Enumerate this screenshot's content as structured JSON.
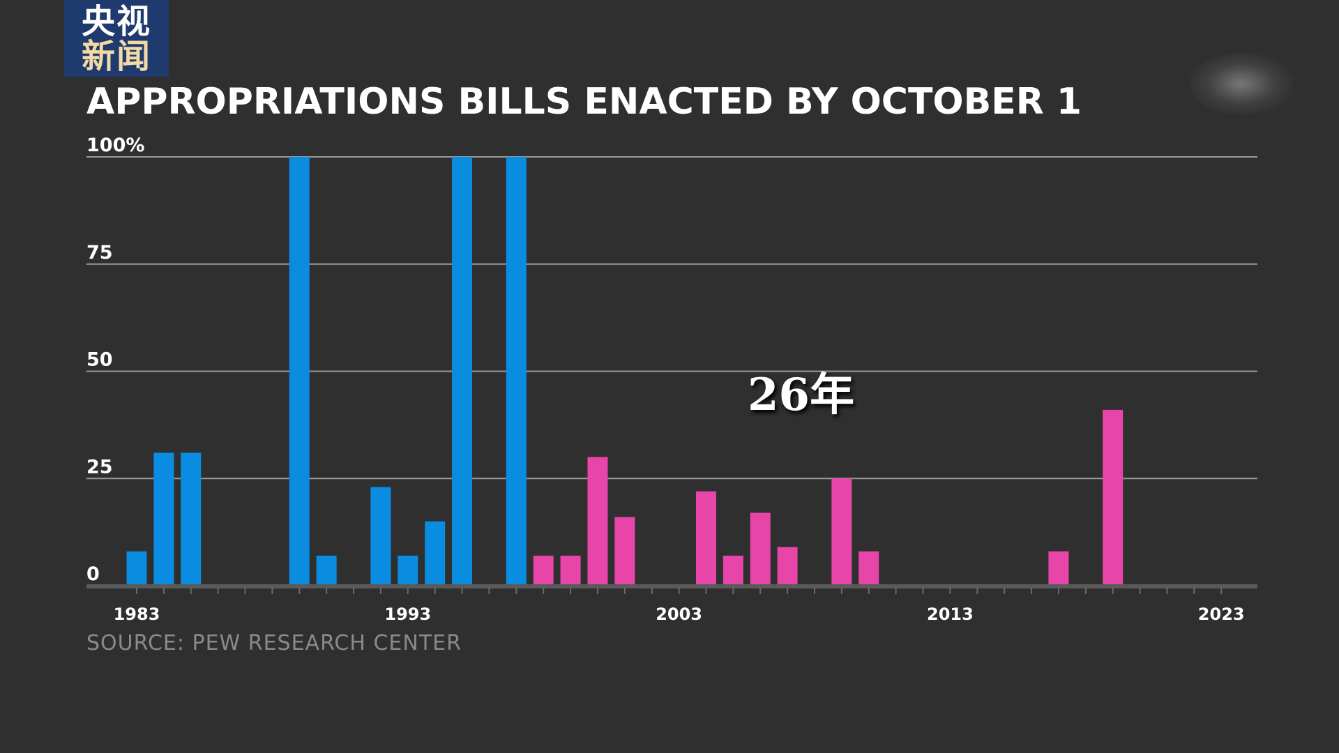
{
  "logo": {
    "line1": "央视",
    "line2": "新闻"
  },
  "annotation": "26年",
  "chart_data": {
    "type": "bar",
    "title": "APPROPRIATIONS BILLS ENACTED BY OCTOBER 1",
    "source": "SOURCE:  PEW RESEARCH CENTER",
    "xlabel": "",
    "ylabel": "",
    "ylim": [
      0,
      100
    ],
    "yticks": [
      "0",
      "25",
      "50",
      "75",
      "100%"
    ],
    "ytick_values": [
      0,
      25,
      50,
      75,
      100
    ],
    "xticks": [
      "1983",
      "1993",
      "2003",
      "2013",
      "2023"
    ],
    "grid": true,
    "colors": {
      "blue": "#0a8de0",
      "pink": "#e845a8"
    },
    "x": [
      1983,
      1984,
      1985,
      1986,
      1987,
      1988,
      1989,
      1990,
      1991,
      1992,
      1993,
      1994,
      1995,
      1996,
      1997,
      1998,
      1999,
      2000,
      2001,
      2002,
      2003,
      2004,
      2005,
      2006,
      2007,
      2008,
      2009,
      2010,
      2011,
      2012,
      2013,
      2014,
      2015,
      2016,
      2017,
      2018,
      2019,
      2020,
      2021,
      2022,
      2023
    ],
    "values": [
      8,
      31,
      31,
      0,
      0,
      0,
      100,
      7,
      0,
      23,
      7,
      15,
      100,
      0,
      100,
      7,
      7,
      30,
      16,
      0,
      0,
      22,
      7,
      17,
      9,
      0,
      25,
      8,
      0,
      0,
      0,
      0,
      0,
      0,
      8,
      0,
      41,
      0,
      0,
      0,
      0
    ],
    "bar_color": [
      "blue",
      "blue",
      "blue",
      "blue",
      "blue",
      "blue",
      "blue",
      "blue",
      "blue",
      "blue",
      "blue",
      "blue",
      "blue",
      "blue",
      "blue",
      "pink",
      "pink",
      "pink",
      "pink",
      "pink",
      "pink",
      "pink",
      "pink",
      "pink",
      "pink",
      "pink",
      "pink",
      "pink",
      "pink",
      "pink",
      "pink",
      "pink",
      "pink",
      "pink",
      "pink",
      "pink",
      "pink",
      "pink",
      "pink",
      "pink",
      "pink"
    ]
  }
}
